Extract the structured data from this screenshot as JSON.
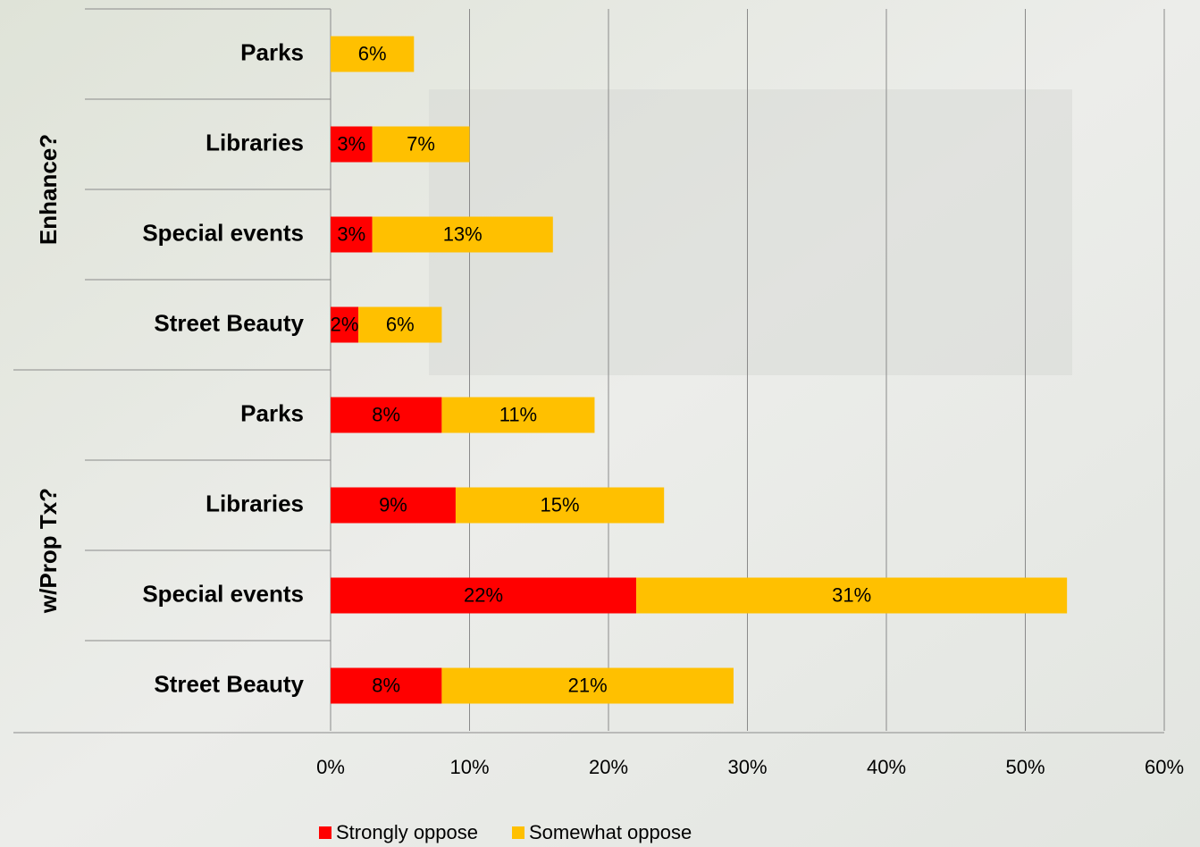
{
  "chart_data": {
    "type": "stacked-bar-horizontal",
    "groups": [
      {
        "label": "Enhance?",
        "categories": [
          "Parks",
          "Libraries",
          "Special events",
          "Street Beauty"
        ]
      },
      {
        "label": "w/Prop Tx?",
        "categories": [
          "Parks",
          "Libraries",
          "Special events",
          "Street Beauty"
        ]
      }
    ],
    "series": [
      {
        "name": "Strongly oppose",
        "color": "#ff0000",
        "values": [
          null,
          3,
          3,
          2,
          8,
          9,
          22,
          8
        ],
        "value_labels": [
          null,
          "3%",
          "3%",
          "2%",
          "8%",
          "9%",
          "22%",
          "8%"
        ]
      },
      {
        "name": "Somewhat oppose",
        "color": "#ffc000",
        "values": [
          6,
          7,
          13,
          6,
          11,
          15,
          31,
          21
        ],
        "value_labels": [
          "6%",
          "7%",
          "13%",
          "6%",
          "11%",
          "15%",
          "31%",
          "21%"
        ]
      }
    ],
    "xlim": [
      0,
      60
    ],
    "xticks": [
      {
        "value": 0,
        "label": "0%"
      },
      {
        "value": 10,
        "label": "10%"
      },
      {
        "value": 20,
        "label": "20%"
      },
      {
        "value": 30,
        "label": "30%"
      },
      {
        "value": 40,
        "label": "40%"
      },
      {
        "value": 50,
        "label": "50%"
      },
      {
        "value": 60,
        "label": "60%"
      }
    ],
    "grid": true
  }
}
